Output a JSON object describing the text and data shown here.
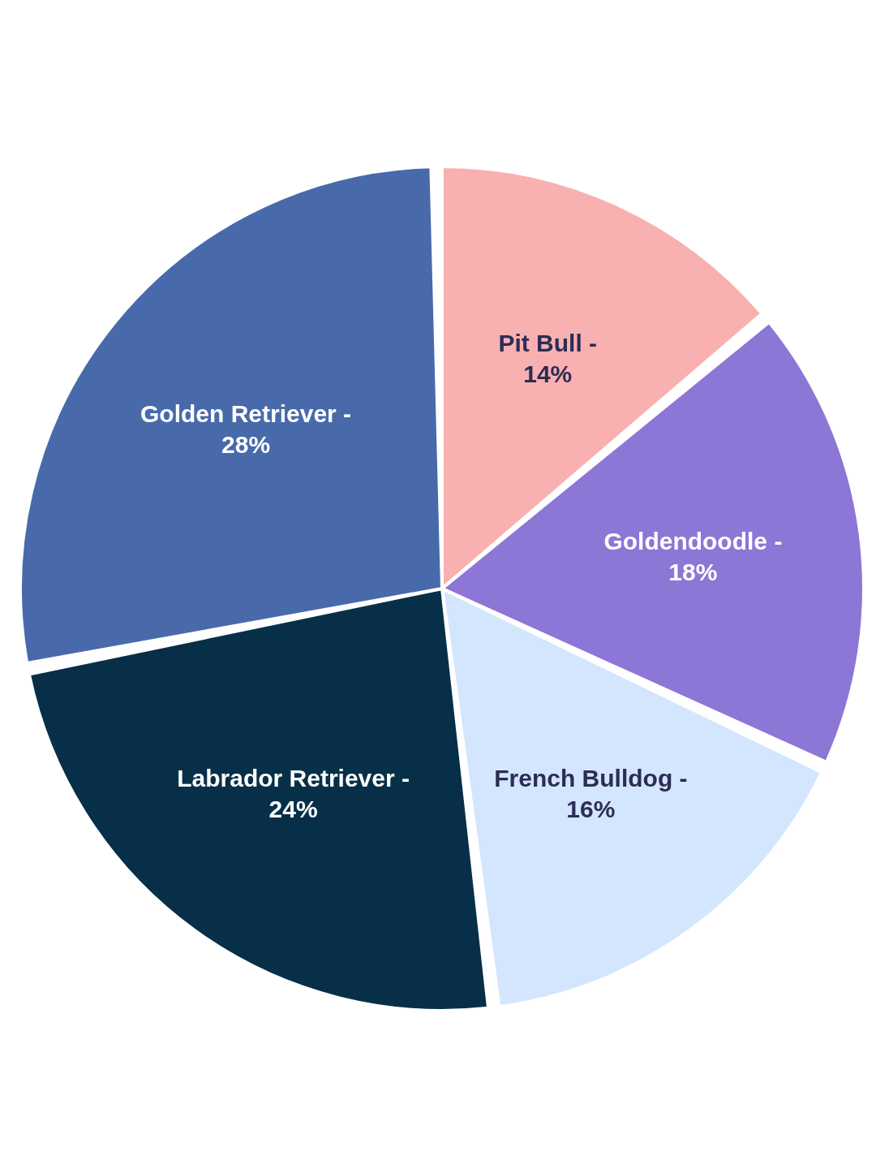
{
  "chart_data": {
    "type": "pie",
    "categories": [
      "Pit Bull -",
      "Goldendoodle -",
      "French Bulldog -",
      "Labrador Retriever -",
      "Golden Retriever -"
    ],
    "values": [
      14,
      18,
      16,
      24,
      28
    ],
    "value_labels": [
      "14%",
      "18%",
      "16%",
      "24%",
      "28%"
    ],
    "colors": [
      "#f9b0b0",
      "#8c76d6",
      "#d4e6fe",
      "#072f48",
      "#486aab"
    ]
  }
}
